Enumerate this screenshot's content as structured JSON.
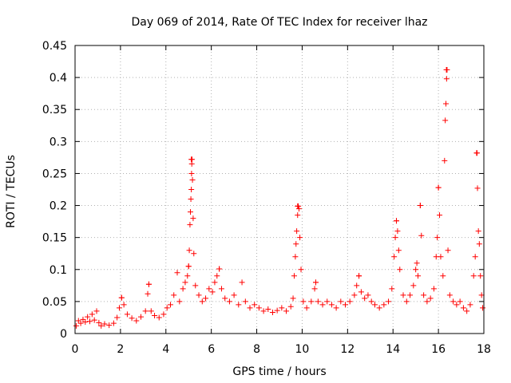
{
  "chart_data": {
    "type": "scatter",
    "title": "Day 069 of 2014, Rate Of TEC Index for receiver lhaz",
    "xlabel": "GPS time / hours",
    "ylabel": "ROTI / TECUs",
    "xlim": [
      0,
      18
    ],
    "ylim": [
      0,
      0.45
    ],
    "xticks": [
      0,
      2,
      4,
      6,
      8,
      10,
      12,
      14,
      16,
      18
    ],
    "yticks": [
      0,
      0.05,
      0.1,
      0.15,
      0.2,
      0.25,
      0.3,
      0.35,
      0.4,
      0.45
    ],
    "ytick_labels": [
      "0",
      "0.05",
      "0.1",
      "0.15",
      "0.2",
      "0.25",
      "0.3",
      "0.35",
      "0.4",
      "0.45"
    ],
    "grid": true,
    "marker": "+",
    "colors": {
      "marker": "#ff0000",
      "grid": "#b0b0b0",
      "axis": "#000000"
    },
    "peaks": [
      {
        "x": 2.05,
        "y": 0.056
      },
      {
        "x": 3.25,
        "y": 0.077
      },
      {
        "x": 5.0,
        "y": 0.105
      },
      {
        "x": 5.12,
        "y": 0.272
      },
      {
        "x": 6.35,
        "y": 0.101
      },
      {
        "x": 9.8,
        "y": 0.199
      },
      {
        "x": 10.6,
        "y": 0.08
      },
      {
        "x": 12.5,
        "y": 0.09
      },
      {
        "x": 14.15,
        "y": 0.176
      },
      {
        "x": 15.2,
        "y": 0.2
      },
      {
        "x": 16.0,
        "y": 0.228
      },
      {
        "x": 16.35,
        "y": 0.412
      },
      {
        "x": 17.7,
        "y": 0.282
      }
    ],
    "series": [
      {
        "name": "ROTI",
        "points": [
          [
            0.05,
            0.012
          ],
          [
            0.15,
            0.02
          ],
          [
            0.25,
            0.016
          ],
          [
            0.35,
            0.022
          ],
          [
            0.45,
            0.018
          ],
          [
            0.55,
            0.026
          ],
          [
            0.65,
            0.019
          ],
          [
            0.75,
            0.03
          ],
          [
            0.85,
            0.021
          ],
          [
            0.95,
            0.035
          ],
          [
            1.05,
            0.017
          ],
          [
            1.15,
            0.012
          ],
          [
            1.3,
            0.015
          ],
          [
            1.5,
            0.013
          ],
          [
            1.7,
            0.016
          ],
          [
            1.85,
            0.025
          ],
          [
            1.95,
            0.04
          ],
          [
            2.05,
            0.056
          ],
          [
            2.15,
            0.045
          ],
          [
            2.3,
            0.03
          ],
          [
            2.5,
            0.024
          ],
          [
            2.7,
            0.02
          ],
          [
            2.9,
            0.026
          ],
          [
            3.1,
            0.035
          ],
          [
            3.2,
            0.062
          ],
          [
            3.25,
            0.077
          ],
          [
            3.35,
            0.035
          ],
          [
            3.5,
            0.028
          ],
          [
            3.7,
            0.025
          ],
          [
            3.9,
            0.03
          ],
          [
            4.05,
            0.04
          ],
          [
            4.2,
            0.045
          ],
          [
            4.35,
            0.06
          ],
          [
            4.5,
            0.095
          ],
          [
            4.6,
            0.05
          ],
          [
            4.75,
            0.07
          ],
          [
            4.85,
            0.08
          ],
          [
            4.95,
            0.09
          ],
          [
            5.0,
            0.105
          ],
          [
            5.03,
            0.13
          ],
          [
            5.06,
            0.17
          ],
          [
            5.08,
            0.19
          ],
          [
            5.1,
            0.21
          ],
          [
            5.12,
            0.225
          ],
          [
            5.13,
            0.25
          ],
          [
            5.14,
            0.265
          ],
          [
            5.15,
            0.272
          ],
          [
            5.17,
            0.24
          ],
          [
            5.2,
            0.18
          ],
          [
            5.23,
            0.125
          ],
          [
            5.3,
            0.075
          ],
          [
            5.45,
            0.06
          ],
          [
            5.6,
            0.05
          ],
          [
            5.75,
            0.055
          ],
          [
            5.9,
            0.07
          ],
          [
            6.05,
            0.065
          ],
          [
            6.15,
            0.08
          ],
          [
            6.25,
            0.09
          ],
          [
            6.35,
            0.101
          ],
          [
            6.45,
            0.07
          ],
          [
            6.6,
            0.055
          ],
          [
            6.8,
            0.05
          ],
          [
            7.0,
            0.06
          ],
          [
            7.2,
            0.045
          ],
          [
            7.35,
            0.08
          ],
          [
            7.5,
            0.05
          ],
          [
            7.7,
            0.04
          ],
          [
            7.9,
            0.045
          ],
          [
            8.1,
            0.04
          ],
          [
            8.3,
            0.035
          ],
          [
            8.5,
            0.038
          ],
          [
            8.7,
            0.033
          ],
          [
            8.9,
            0.036
          ],
          [
            9.1,
            0.04
          ],
          [
            9.3,
            0.035
          ],
          [
            9.5,
            0.042
          ],
          [
            9.6,
            0.055
          ],
          [
            9.65,
            0.09
          ],
          [
            9.7,
            0.12
          ],
          [
            9.73,
            0.14
          ],
          [
            9.76,
            0.16
          ],
          [
            9.8,
            0.185
          ],
          [
            9.83,
            0.199
          ],
          [
            9.86,
            0.195
          ],
          [
            9.9,
            0.15
          ],
          [
            9.95,
            0.1
          ],
          [
            10.05,
            0.05
          ],
          [
            10.2,
            0.04
          ],
          [
            10.4,
            0.05
          ],
          [
            10.55,
            0.07
          ],
          [
            10.6,
            0.08
          ],
          [
            10.7,
            0.05
          ],
          [
            10.9,
            0.045
          ],
          [
            11.1,
            0.05
          ],
          [
            11.3,
            0.045
          ],
          [
            11.5,
            0.04
          ],
          [
            11.7,
            0.05
          ],
          [
            11.9,
            0.045
          ],
          [
            12.1,
            0.05
          ],
          [
            12.3,
            0.06
          ],
          [
            12.4,
            0.075
          ],
          [
            12.5,
            0.09
          ],
          [
            12.6,
            0.065
          ],
          [
            12.75,
            0.055
          ],
          [
            12.9,
            0.06
          ],
          [
            13.05,
            0.05
          ],
          [
            13.2,
            0.045
          ],
          [
            13.4,
            0.04
          ],
          [
            13.6,
            0.045
          ],
          [
            13.8,
            0.05
          ],
          [
            13.95,
            0.07
          ],
          [
            14.05,
            0.12
          ],
          [
            14.1,
            0.15
          ],
          [
            14.15,
            0.176
          ],
          [
            14.2,
            0.16
          ],
          [
            14.25,
            0.13
          ],
          [
            14.3,
            0.1
          ],
          [
            14.45,
            0.06
          ],
          [
            14.6,
            0.05
          ],
          [
            14.75,
            0.06
          ],
          [
            14.9,
            0.075
          ],
          [
            15.0,
            0.1
          ],
          [
            15.05,
            0.11
          ],
          [
            15.1,
            0.09
          ],
          [
            15.2,
            0.2
          ],
          [
            15.25,
            0.153
          ],
          [
            15.35,
            0.06
          ],
          [
            15.5,
            0.05
          ],
          [
            15.65,
            0.055
          ],
          [
            15.8,
            0.07
          ],
          [
            15.9,
            0.12
          ],
          [
            15.95,
            0.15
          ],
          [
            16.0,
            0.228
          ],
          [
            16.05,
            0.185
          ],
          [
            16.1,
            0.12
          ],
          [
            16.2,
            0.09
          ],
          [
            16.27,
            0.27
          ],
          [
            16.3,
            0.333
          ],
          [
            16.33,
            0.359
          ],
          [
            16.36,
            0.398
          ],
          [
            16.38,
            0.412
          ],
          [
            16.42,
            0.13
          ],
          [
            16.5,
            0.06
          ],
          [
            16.65,
            0.05
          ],
          [
            16.8,
            0.045
          ],
          [
            16.95,
            0.05
          ],
          [
            17.1,
            0.04
          ],
          [
            17.25,
            0.035
          ],
          [
            17.4,
            0.045
          ],
          [
            17.55,
            0.09
          ],
          [
            17.62,
            0.12
          ],
          [
            17.68,
            0.282
          ],
          [
            17.72,
            0.227
          ],
          [
            17.76,
            0.16
          ],
          [
            17.8,
            0.14
          ],
          [
            17.85,
            0.09
          ],
          [
            17.9,
            0.06
          ],
          [
            17.95,
            0.04
          ]
        ]
      }
    ]
  }
}
